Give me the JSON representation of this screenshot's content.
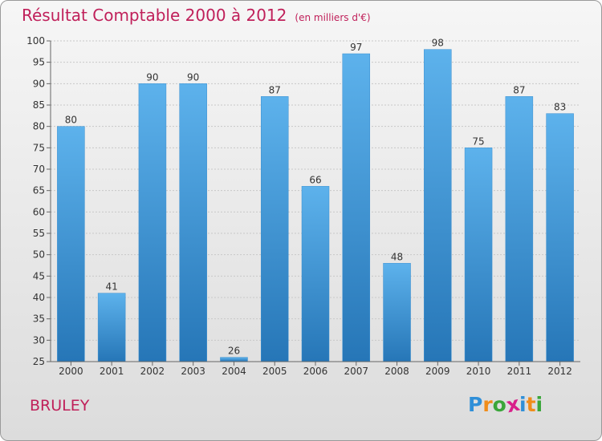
{
  "header": {
    "title": "Résultat Comptable 2000 à 2012",
    "unit": "(en milliers d'€)"
  },
  "footer": {
    "commune": "BRULEY",
    "brand_letters": [
      "P",
      "r",
      "o",
      "x",
      "i",
      "t",
      "i"
    ],
    "brand_colors": [
      "#2f8fd8",
      "#f08c1a",
      "#3aa63a",
      "#d8208a",
      "#2f8fd8",
      "#f08c1a",
      "#3aa63a"
    ]
  },
  "colors": {
    "title": "#c0205a",
    "bar_top": "#5db2ec",
    "bar_bottom": "#2676b7"
  },
  "chart_data": {
    "type": "bar",
    "title": "Résultat Comptable 2000 à 2012",
    "subtitle": "(en milliers d'€)",
    "categories": [
      "2000",
      "2001",
      "2002",
      "2003",
      "2004",
      "2005",
      "2006",
      "2007",
      "2008",
      "2009",
      "2010",
      "2011",
      "2012"
    ],
    "values": [
      80,
      41,
      90,
      90,
      26,
      87,
      66,
      97,
      48,
      98,
      75,
      87,
      83
    ],
    "ylim": [
      25,
      100
    ],
    "yticks": [
      25,
      30,
      35,
      40,
      45,
      50,
      55,
      60,
      65,
      70,
      75,
      80,
      85,
      90,
      95,
      100
    ],
    "xlabel": "",
    "ylabel": "",
    "grid": true
  }
}
